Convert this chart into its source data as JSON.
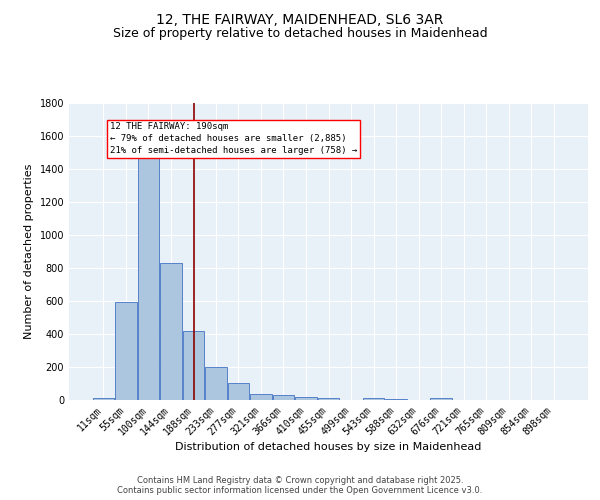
{
  "title_line1": "12, THE FAIRWAY, MAIDENHEAD, SL6 3AR",
  "title_line2": "Size of property relative to detached houses in Maidenhead",
  "xlabel": "Distribution of detached houses by size in Maidenhead",
  "ylabel": "Number of detached properties",
  "bar_labels": [
    "11sqm",
    "55sqm",
    "100sqm",
    "144sqm",
    "188sqm",
    "233sqm",
    "277sqm",
    "321sqm",
    "366sqm",
    "410sqm",
    "455sqm",
    "499sqm",
    "543sqm",
    "588sqm",
    "632sqm",
    "676sqm",
    "721sqm",
    "765sqm",
    "809sqm",
    "854sqm",
    "898sqm"
  ],
  "bar_values": [
    15,
    590,
    1480,
    830,
    420,
    200,
    100,
    35,
    30,
    20,
    10,
    0,
    15,
    5,
    0,
    15,
    0,
    0,
    0,
    0,
    0
  ],
  "bar_color": "#adc6e0",
  "bar_edge_color": "#4472c4",
  "annotation_line_color": "#8b0000",
  "annotation_box_text": "12 THE FAIRWAY: 190sqm\n← 79% of detached houses are smaller (2,885)\n21% of semi-detached houses are larger (758) →",
  "ylim": [
    0,
    1800
  ],
  "yticks": [
    0,
    200,
    400,
    600,
    800,
    1000,
    1200,
    1400,
    1600,
    1800
  ],
  "bg_color": "#e8f0f8",
  "grid_color": "#ffffff",
  "footer_text": "Contains HM Land Registry data © Crown copyright and database right 2025.\nContains public sector information licensed under the Open Government Licence v3.0.",
  "title_fontsize": 10,
  "subtitle_fontsize": 9,
  "axis_label_fontsize": 8,
  "tick_fontsize": 7,
  "annotation_fontsize": 6.5,
  "footer_fontsize": 6
}
